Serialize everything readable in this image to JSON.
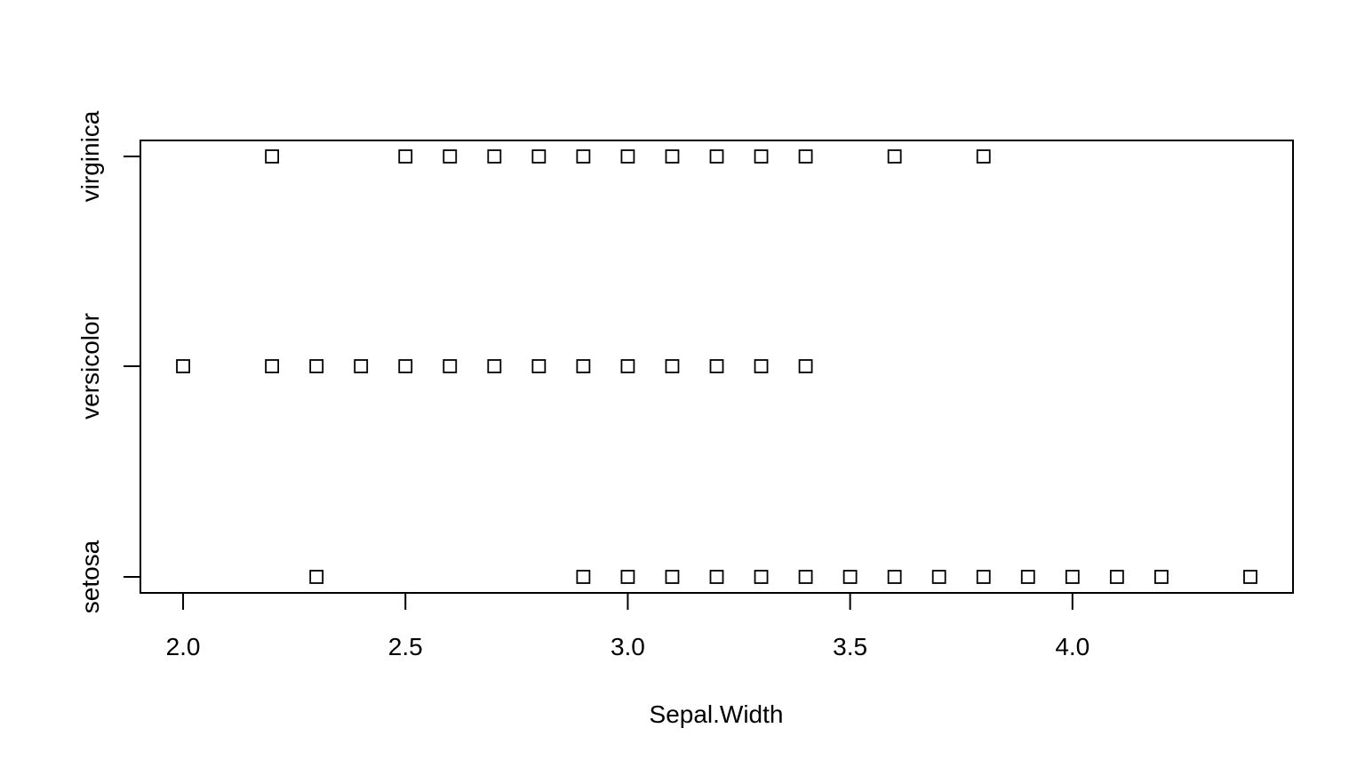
{
  "chart_data": {
    "type": "scatter",
    "title": "",
    "xlabel": "Sepal.Width",
    "ylabel": "",
    "xlim": [
      1.904,
      4.496
    ],
    "x_ticks": [
      2.0,
      2.5,
      3.0,
      3.5,
      4.0
    ],
    "x_tick_labels": [
      "2.0",
      "2.5",
      "3.0",
      "3.5",
      "4.0"
    ],
    "categories": [
      "setosa",
      "versicolor",
      "virginica"
    ],
    "grid": false,
    "legend": "none",
    "marker": "open-square",
    "series": [
      {
        "category": "setosa",
        "x": [
          2.3,
          2.9,
          3.0,
          3.1,
          3.2,
          3.3,
          3.4,
          3.5,
          3.6,
          3.7,
          3.8,
          3.9,
          4.0,
          4.1,
          4.2,
          4.4
        ]
      },
      {
        "category": "versicolor",
        "x": [
          2.0,
          2.2,
          2.3,
          2.4,
          2.5,
          2.6,
          2.7,
          2.8,
          2.9,
          3.0,
          3.1,
          3.2,
          3.3,
          3.4
        ]
      },
      {
        "category": "virginica",
        "x": [
          2.2,
          2.5,
          2.6,
          2.7,
          2.8,
          2.9,
          3.0,
          3.1,
          3.2,
          3.3,
          3.4,
          3.6,
          3.8
        ]
      }
    ]
  }
}
